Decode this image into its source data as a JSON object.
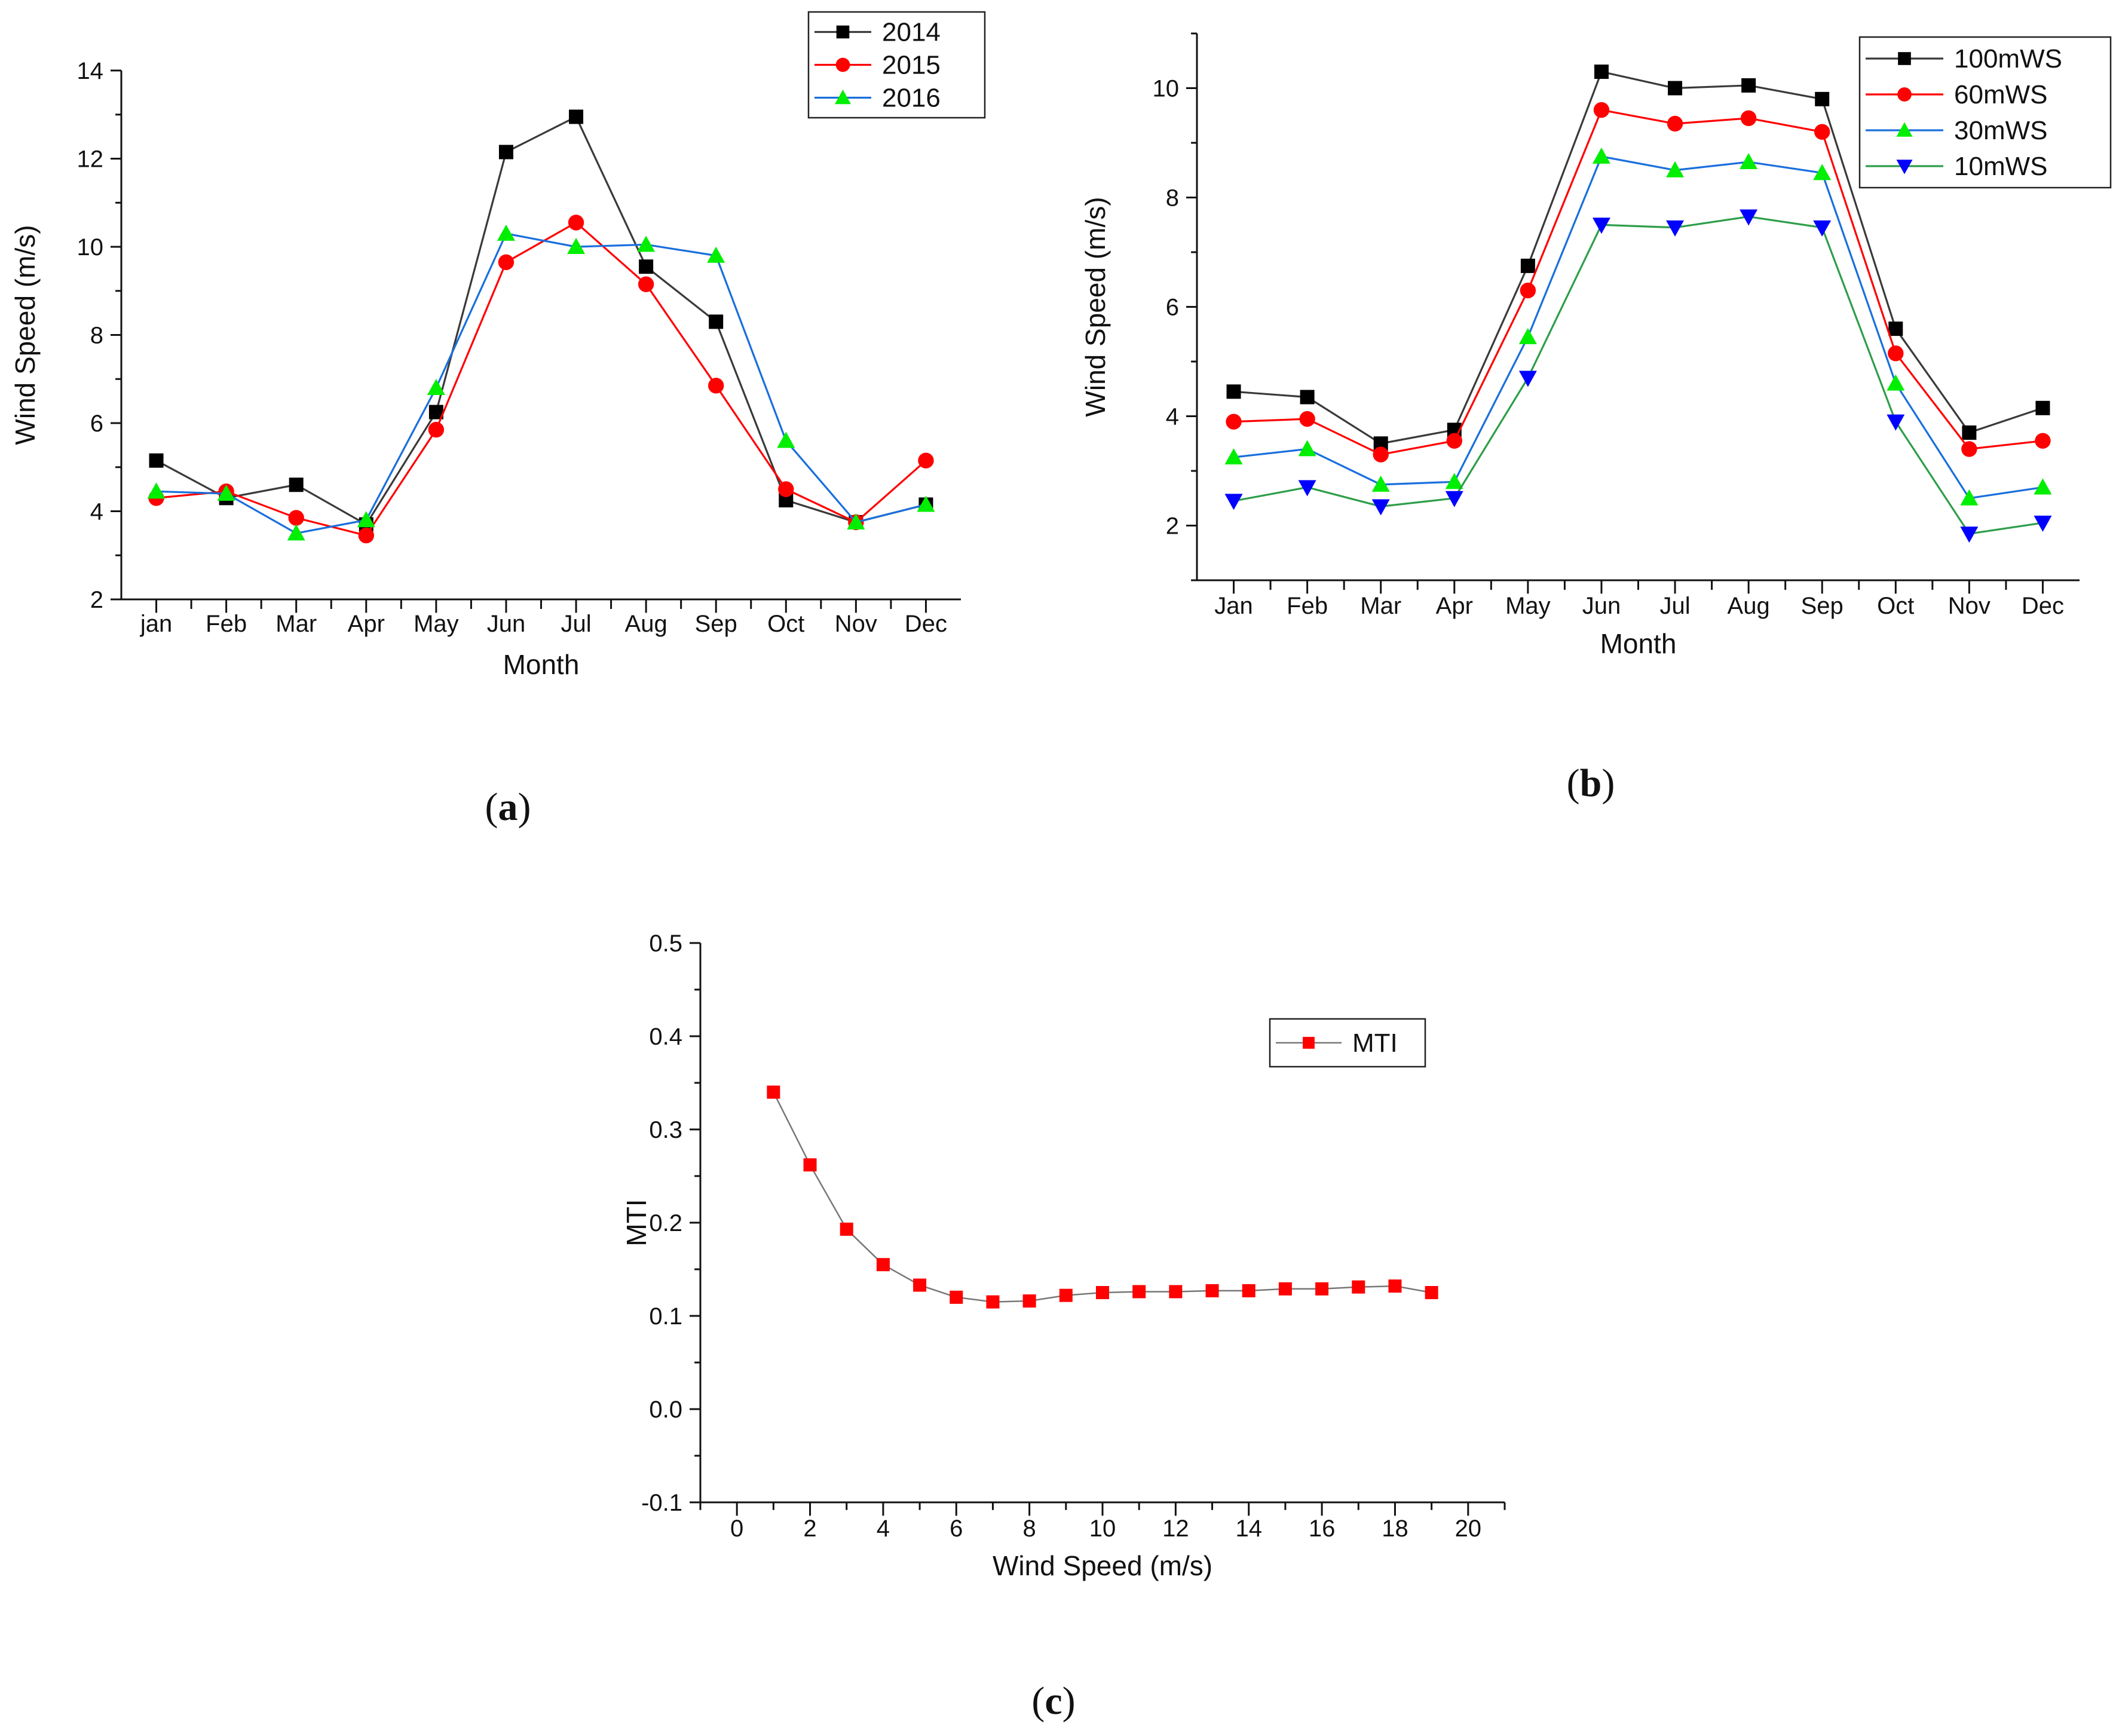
{
  "chart_data": [
    {
      "id": "a",
      "type": "line",
      "panel_label": {
        "open": "(",
        "letter": "a",
        "close": ")"
      },
      "title": "",
      "xlabel": "Month",
      "ylabel": "Wind Speed (m/s)",
      "categories": [
        "jan",
        "Feb",
        "Mar",
        "Apr",
        "May",
        "Jun",
        "Jul",
        "Aug",
        "Sep",
        "Oct",
        "Nov",
        "Dec"
      ],
      "ylim": [
        2,
        14
      ],
      "yticks": [
        2,
        4,
        6,
        8,
        10,
        12,
        14
      ],
      "legend_position": "top-right",
      "series": [
        {
          "name": "2014",
          "color": "#3a3a3a",
          "marker": "square",
          "marker_color": "#000000",
          "values": [
            5.15,
            4.3,
            4.6,
            3.7,
            6.25,
            12.15,
            12.95,
            9.55,
            8.3,
            4.25,
            3.75,
            4.15
          ]
        },
        {
          "name": "2015",
          "color": "#ff0000",
          "marker": "circle",
          "marker_color": "#ff0000",
          "values": [
            4.3,
            4.45,
            3.85,
            3.45,
            5.85,
            9.65,
            10.55,
            9.15,
            6.85,
            4.5,
            3.75,
            5.15
          ]
        },
        {
          "name": "2016",
          "color": "#1a6fdc",
          "marker": "triangle-up",
          "marker_color": "#00ee00",
          "values": [
            4.45,
            4.4,
            3.5,
            3.8,
            6.8,
            10.3,
            10.0,
            10.05,
            9.8,
            5.6,
            3.75,
            4.15
          ]
        }
      ]
    },
    {
      "id": "b",
      "type": "line",
      "panel_label": {
        "open": "(",
        "letter": "b",
        "close": ")"
      },
      "title": "",
      "xlabel": "Month",
      "ylabel": "Wind Speed (m/s)",
      "categories": [
        "Jan",
        "Feb",
        "Mar",
        "Apr",
        "May",
        "Jun",
        "Jul",
        "Aug",
        "Sep",
        "Oct",
        "Nov",
        "Dec"
      ],
      "ylim": [
        1,
        11
      ],
      "yticks": [
        2,
        4,
        6,
        8,
        10
      ],
      "legend_position": "top-right",
      "series": [
        {
          "name": "100mWS",
          "color": "#3a3a3a",
          "marker": "square",
          "marker_color": "#000000",
          "values": [
            4.45,
            4.35,
            3.5,
            3.75,
            6.75,
            10.3,
            10.0,
            10.05,
            9.8,
            5.6,
            3.7,
            4.15
          ]
        },
        {
          "name": "60mWS",
          "color": "#ff0000",
          "marker": "circle",
          "marker_color": "#ff0000",
          "values": [
            3.9,
            3.95,
            3.3,
            3.55,
            6.3,
            9.6,
            9.35,
            9.45,
            9.2,
            5.15,
            3.4,
            3.55
          ]
        },
        {
          "name": "30mWS",
          "color": "#1a6fdc",
          "marker": "triangle-up",
          "marker_color": "#00ee00",
          "values": [
            3.25,
            3.4,
            2.75,
            2.8,
            5.45,
            8.75,
            8.5,
            8.65,
            8.45,
            4.6,
            2.5,
            2.7
          ]
        },
        {
          "name": "10mWS",
          "color": "#2e9e4a",
          "marker": "triangle-down",
          "marker_color": "#0000ff",
          "values": [
            2.45,
            2.7,
            2.35,
            2.5,
            4.7,
            7.5,
            7.45,
            7.65,
            7.45,
            3.9,
            1.85,
            2.05
          ]
        }
      ]
    },
    {
      "id": "c",
      "type": "line",
      "panel_label": {
        "open": "(",
        "letter": "c",
        "close": ")"
      },
      "title": "",
      "xlabel": "Wind Speed (m/s)",
      "ylabel": "MTI",
      "xlim": [
        -1,
        21
      ],
      "xticks": [
        0,
        2,
        4,
        6,
        8,
        10,
        12,
        14,
        16,
        18,
        20
      ],
      "ylim": [
        -0.1,
        0.5
      ],
      "yticks": [
        -0.1,
        0.0,
        0.1,
        0.2,
        0.3,
        0.4,
        0.5
      ],
      "ytick_labels": [
        "-0.1",
        "0.0",
        "0.1",
        "0.2",
        "0.3",
        "0.4",
        "0.5"
      ],
      "legend_position": "upper-right",
      "series": [
        {
          "name": "MTI",
          "color": "#777777",
          "marker": "square",
          "marker_color": "#ff0000",
          "x": [
            1,
            2,
            3,
            4,
            5,
            6,
            7,
            8,
            9,
            10,
            11,
            12,
            13,
            14,
            15,
            16,
            17,
            18,
            19
          ],
          "values": [
            0.34,
            0.262,
            0.193,
            0.155,
            0.133,
            0.12,
            0.115,
            0.116,
            0.122,
            0.125,
            0.126,
            0.126,
            0.127,
            0.127,
            0.129,
            0.129,
            0.131,
            0.132,
            0.125
          ]
        }
      ]
    }
  ]
}
